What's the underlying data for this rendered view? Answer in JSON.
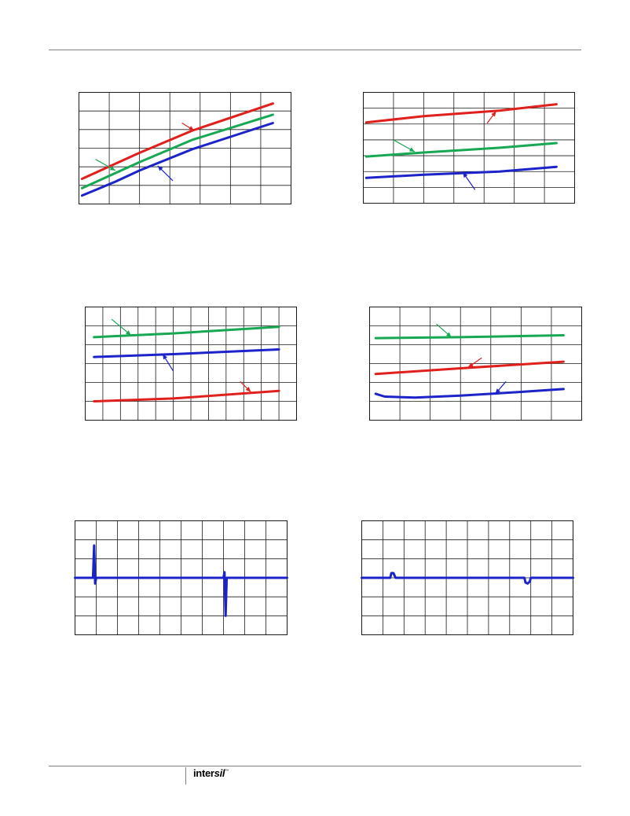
{
  "colors": {
    "red": "#e0201c",
    "green": "#18a854",
    "blue": "#1c23c8",
    "grid": "#1a1a1a"
  },
  "logo_text": "intersil",
  "chart_data": [
    {
      "type": "line",
      "grid_cols": 7,
      "grid_rows": 6,
      "xlim": [
        0,
        7
      ],
      "ylim": [
        0,
        6
      ],
      "series": [
        {
          "color": "red",
          "points": [
            [
              0.1,
              1.35
            ],
            [
              2.0,
              2.75
            ],
            [
              3.75,
              3.95
            ],
            [
              6.4,
              5.4
            ]
          ],
          "arrow": {
            "from": [
              3.4,
              4.35
            ],
            "to": [
              3.8,
              3.95
            ]
          }
        },
        {
          "color": "green",
          "points": [
            [
              0.1,
              0.85
            ],
            [
              2.0,
              2.25
            ],
            [
              3.75,
              3.45
            ],
            [
              6.4,
              4.8
            ]
          ],
          "arrow": {
            "from": [
              0.55,
              2.4
            ],
            "to": [
              1.2,
              1.8
            ]
          }
        },
        {
          "color": "blue",
          "points": [
            [
              0.1,
              0.45
            ],
            [
              1.2,
              1.2
            ],
            [
              2.0,
              1.8
            ],
            [
              3.75,
              2.95
            ],
            [
              6.4,
              4.35
            ]
          ],
          "arrow": {
            "from": [
              3.1,
              1.25
            ],
            "to": [
              2.6,
              2.05
            ]
          }
        }
      ]
    },
    {
      "type": "line",
      "grid_cols": 7,
      "grid_rows": 7,
      "xlim": [
        0,
        7
      ],
      "ylim": [
        0,
        7
      ],
      "series": [
        {
          "color": "red",
          "points": [
            [
              0.1,
              5.1
            ],
            [
              2.0,
              5.5
            ],
            [
              4.5,
              5.85
            ],
            [
              6.4,
              6.25
            ]
          ],
          "arrow": {
            "from": [
              4.1,
              5.05
            ],
            "to": [
              4.4,
              5.8
            ]
          }
        },
        {
          "color": "green",
          "points": [
            [
              0.1,
              2.95
            ],
            [
              2.0,
              3.2
            ],
            [
              4.5,
              3.5
            ],
            [
              6.4,
              3.8
            ]
          ],
          "arrow": {
            "from": [
              1.0,
              4.0
            ],
            "to": [
              1.7,
              3.25
            ]
          }
        },
        {
          "color": "blue",
          "points": [
            [
              0.1,
              1.6
            ],
            [
              2.0,
              1.8
            ],
            [
              4.5,
              2.0
            ],
            [
              6.4,
              2.3
            ]
          ],
          "arrow": {
            "from": [
              3.7,
              0.85
            ],
            "to": [
              3.3,
              1.95
            ]
          }
        }
      ]
    },
    {
      "type": "line",
      "grid_cols": 12,
      "grid_rows": 6,
      "xlim": [
        0,
        12
      ],
      "ylim": [
        0,
        6
      ],
      "series": [
        {
          "color": "green",
          "points": [
            [
              0.5,
              4.4
            ],
            [
              5.0,
              4.6
            ],
            [
              11.0,
              4.95
            ]
          ],
          "arrow": {
            "from": [
              1.5,
              5.35
            ],
            "to": [
              2.6,
              4.5
            ]
          }
        },
        {
          "color": "blue",
          "points": [
            [
              0.5,
              3.35
            ],
            [
              5.0,
              3.5
            ],
            [
              11.0,
              3.75
            ]
          ],
          "arrow": {
            "from": [
              5.0,
              2.6
            ],
            "to": [
              4.4,
              3.5
            ]
          }
        },
        {
          "color": "red",
          "points": [
            [
              0.5,
              1.0
            ],
            [
              5.0,
              1.15
            ],
            [
              11.0,
              1.55
            ]
          ],
          "arrow": {
            "from": [
              8.8,
              2.05
            ],
            "to": [
              9.4,
              1.5
            ]
          }
        }
      ]
    },
    {
      "type": "line",
      "grid_cols": 7,
      "grid_rows": 6,
      "xlim": [
        0,
        7
      ],
      "ylim": [
        0,
        6
      ],
      "series": [
        {
          "color": "green",
          "points": [
            [
              0.2,
              4.35
            ],
            [
              3.0,
              4.4
            ],
            [
              6.4,
              4.5
            ]
          ],
          "arrow": {
            "from": [
              2.2,
              5.1
            ],
            "to": [
              2.7,
              4.4
            ]
          }
        },
        {
          "color": "red",
          "points": [
            [
              0.2,
              2.45
            ],
            [
              3.0,
              2.75
            ],
            [
              6.4,
              3.1
            ]
          ],
          "arrow": {
            "from": [
              3.7,
              3.3
            ],
            "to": [
              3.25,
              2.8
            ]
          }
        },
        {
          "color": "blue",
          "points": [
            [
              0.2,
              1.4
            ],
            [
              0.5,
              1.25
            ],
            [
              1.5,
              1.2
            ],
            [
              3.0,
              1.3
            ],
            [
              5.0,
              1.5
            ],
            [
              6.4,
              1.65
            ]
          ],
          "arrow": {
            "from": [
              4.5,
              2.05
            ],
            "to": [
              4.15,
              1.4
            ]
          }
        }
      ]
    },
    {
      "type": "line",
      "grid_cols": 10,
      "grid_rows": 6,
      "xlim": [
        0,
        10
      ],
      "ylim": [
        -3,
        3
      ],
      "series": [
        {
          "color": "blue",
          "points": [
            [
              0,
              0.0
            ],
            [
              0.85,
              0.0
            ],
            [
              0.9,
              1.7
            ],
            [
              0.95,
              -0.3
            ],
            [
              1.0,
              0.0
            ],
            [
              7.0,
              0.0
            ],
            [
              7.05,
              0.3
            ],
            [
              7.1,
              -2.0
            ],
            [
              7.15,
              0.0
            ],
            [
              10,
              0.0
            ]
          ]
        }
      ]
    },
    {
      "type": "line",
      "grid_cols": 10,
      "grid_rows": 6,
      "xlim": [
        0,
        10
      ],
      "ylim": [
        -3,
        3
      ],
      "series": [
        {
          "color": "blue",
          "points": [
            [
              0,
              0.0
            ],
            [
              1.35,
              0.0
            ],
            [
              1.4,
              0.25
            ],
            [
              1.5,
              0.25
            ],
            [
              1.6,
              0.0
            ],
            [
              7.7,
              0.0
            ],
            [
              7.75,
              -0.25
            ],
            [
              7.85,
              -0.3
            ],
            [
              7.95,
              -0.2
            ],
            [
              8.0,
              0.0
            ],
            [
              10,
              0.0
            ]
          ]
        }
      ]
    }
  ]
}
